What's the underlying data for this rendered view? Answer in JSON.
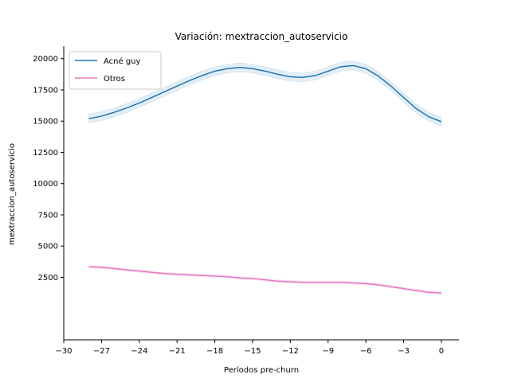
{
  "chart_data": {
    "type": "line",
    "title": "Variación: mextraccion_autoservicio",
    "xlabel": "Períodos pre-churn",
    "ylabel": "mextraccion_autoservicio",
    "xlim": [
      -30,
      1.4
    ],
    "ylim": [
      -2500,
      21000
    ],
    "xticks": [
      -30,
      -27,
      -24,
      -21,
      -18,
      -15,
      -12,
      -9,
      -6,
      -3,
      0
    ],
    "xtick_labels": [
      "−30",
      "−27",
      "−24",
      "−21",
      "−18",
      "−15",
      "−12",
      "−9",
      "−6",
      "−3",
      "0"
    ],
    "yticks": [
      2500,
      5000,
      7500,
      10000,
      12500,
      15000,
      17500,
      20000
    ],
    "ytick_labels": [
      "2500",
      "5000",
      "7500",
      "10000",
      "12500",
      "15000",
      "17500",
      "20000"
    ],
    "grid": false,
    "legend_position": "upper-left",
    "x": [
      -28,
      -27,
      -26,
      -25,
      -24,
      -23,
      -22,
      -21,
      -20,
      -19,
      -18,
      -17,
      -16,
      -15,
      -14,
      -13,
      -12,
      -11,
      -10,
      -9,
      -8,
      -7,
      -6,
      -5,
      -4,
      -3,
      -2,
      -1,
      0
    ],
    "series": [
      {
        "name": "Acné guy",
        "color": "#1f77b4",
        "values": [
          15200,
          15400,
          15700,
          16050,
          16450,
          16900,
          17350,
          17800,
          18250,
          18650,
          19000,
          19200,
          19300,
          19200,
          19000,
          18750,
          18550,
          18500,
          18650,
          19000,
          19350,
          19450,
          19200,
          18600,
          17800,
          16900,
          16000,
          15350,
          14950
        ],
        "band": 350
      },
      {
        "name": "Otros",
        "color": "#e377c2",
        "values": [
          3350,
          3300,
          3200,
          3100,
          3000,
          2900,
          2800,
          2750,
          2700,
          2650,
          2600,
          2550,
          2450,
          2400,
          2300,
          2200,
          2150,
          2100,
          2100,
          2100,
          2100,
          2050,
          2000,
          1900,
          1750,
          1600,
          1450,
          1300,
          1250
        ],
        "band": 100
      }
    ]
  }
}
